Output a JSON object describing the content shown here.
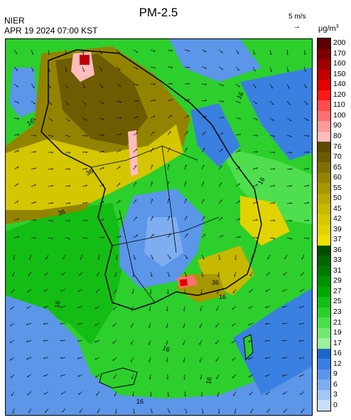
{
  "header": {
    "agency": "NIER",
    "datetime": "APR 19 2024 07:00 KST",
    "title": "PM-2.5",
    "wind_reference": "5 m/s",
    "unit": "μg/m",
    "unit_sup": "3"
  },
  "legend": {
    "levels": [
      {
        "label": "200",
        "color": "#5a0000"
      },
      {
        "label": "170",
        "color": "#7a0000"
      },
      {
        "label": "160",
        "color": "#9c0000"
      },
      {
        "label": "150",
        "color": "#c00000"
      },
      {
        "label": "140",
        "color": "#e00000"
      },
      {
        "label": "120",
        "color": "#ff1a1a"
      },
      {
        "label": "110",
        "color": "#ff4d4d"
      },
      {
        "label": "100",
        "color": "#ff7070"
      },
      {
        "label": "90",
        "color": "#ff9a9a"
      },
      {
        "label": "80",
        "color": "#ffbcbc"
      },
      {
        "label": "76",
        "color": "#5c4a00"
      },
      {
        "label": "70",
        "color": "#6e5c00"
      },
      {
        "label": "65",
        "color": "#807000"
      },
      {
        "label": "60",
        "color": "#938400"
      },
      {
        "label": "55",
        "color": "#a69700"
      },
      {
        "label": "50",
        "color": "#b8a800"
      },
      {
        "label": "45",
        "color": "#c7b800"
      },
      {
        "label": "42",
        "color": "#d4c600"
      },
      {
        "label": "39",
        "color": "#e0d300"
      },
      {
        "label": "37",
        "color": "#ede000"
      },
      {
        "label": "36",
        "color": "#004d00"
      },
      {
        "label": "33",
        "color": "#006400"
      },
      {
        "label": "31",
        "color": "#007a00"
      },
      {
        "label": "29",
        "color": "#009100"
      },
      {
        "label": "27",
        "color": "#00a800"
      },
      {
        "label": "25",
        "color": "#14bd14"
      },
      {
        "label": "23",
        "color": "#2ccf2c"
      },
      {
        "label": "21",
        "color": "#4ede4e"
      },
      {
        "label": "19",
        "color": "#73e873"
      },
      {
        "label": "17",
        "color": "#9cf09c"
      },
      {
        "label": "16",
        "color": "#1f66cc"
      },
      {
        "label": "12",
        "color": "#3a80e0"
      },
      {
        "label": "9",
        "color": "#5b96e8"
      },
      {
        "label": "6",
        "color": "#7eadf0"
      },
      {
        "label": "3",
        "color": "#a3c6f6"
      },
      {
        "label": "0",
        "color": "#c8defb"
      }
    ]
  },
  "map": {
    "background_colors": {
      "sea_green": "#2ccf2c",
      "low_blue": "#5b96e8",
      "moderate_olive": "#938400",
      "high_pink": "#ffbcbc",
      "hotspot_red": "#c00000"
    },
    "contour_labels": [
      "16",
      "16",
      "16",
      "36",
      "36",
      "36",
      "16",
      "16",
      "16",
      "16",
      "16"
    ]
  }
}
